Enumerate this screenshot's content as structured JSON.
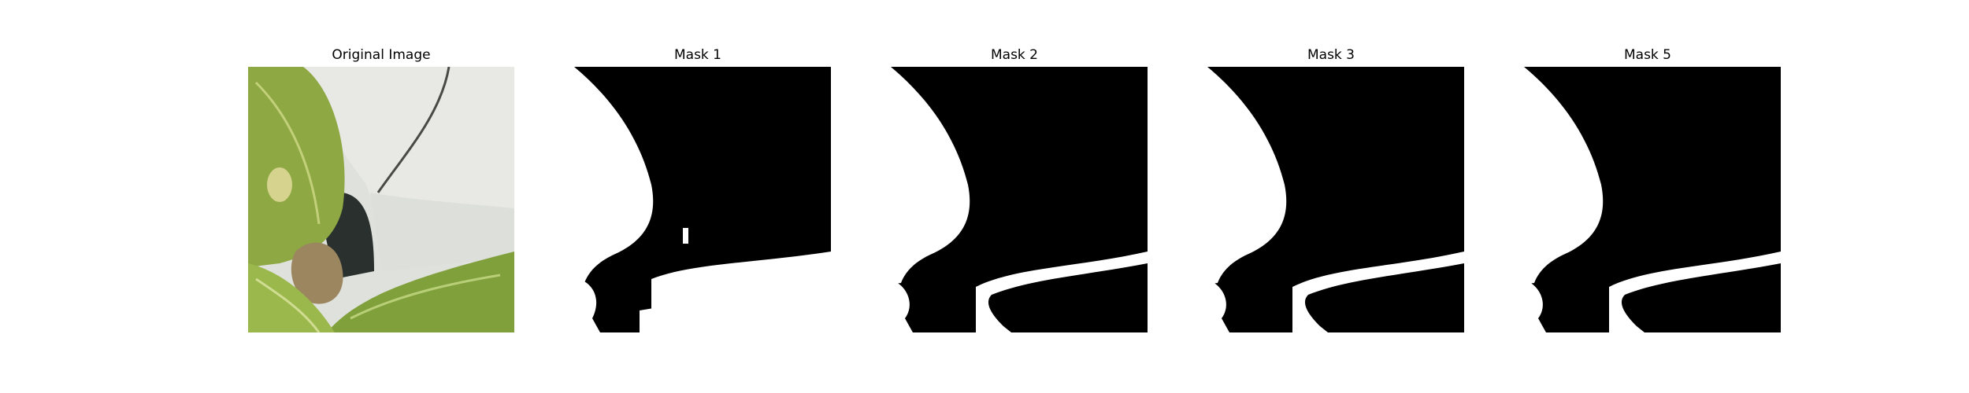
{
  "figure": {
    "panels": [
      {
        "title": "Original Image",
        "kind": "photo"
      },
      {
        "title": "Mask 1",
        "kind": "mask"
      },
      {
        "title": "Mask 2",
        "kind": "mask"
      },
      {
        "title": "Mask 3",
        "kind": "mask"
      },
      {
        "title": "Mask 5",
        "kind": "mask"
      }
    ]
  },
  "colors": {
    "mask_foreground": "#ffffff",
    "mask_background": "#000000",
    "leaf_green": "#8fae45",
    "pot_white": "#e6e8e3",
    "shadow_dark": "#2b2f2c"
  }
}
